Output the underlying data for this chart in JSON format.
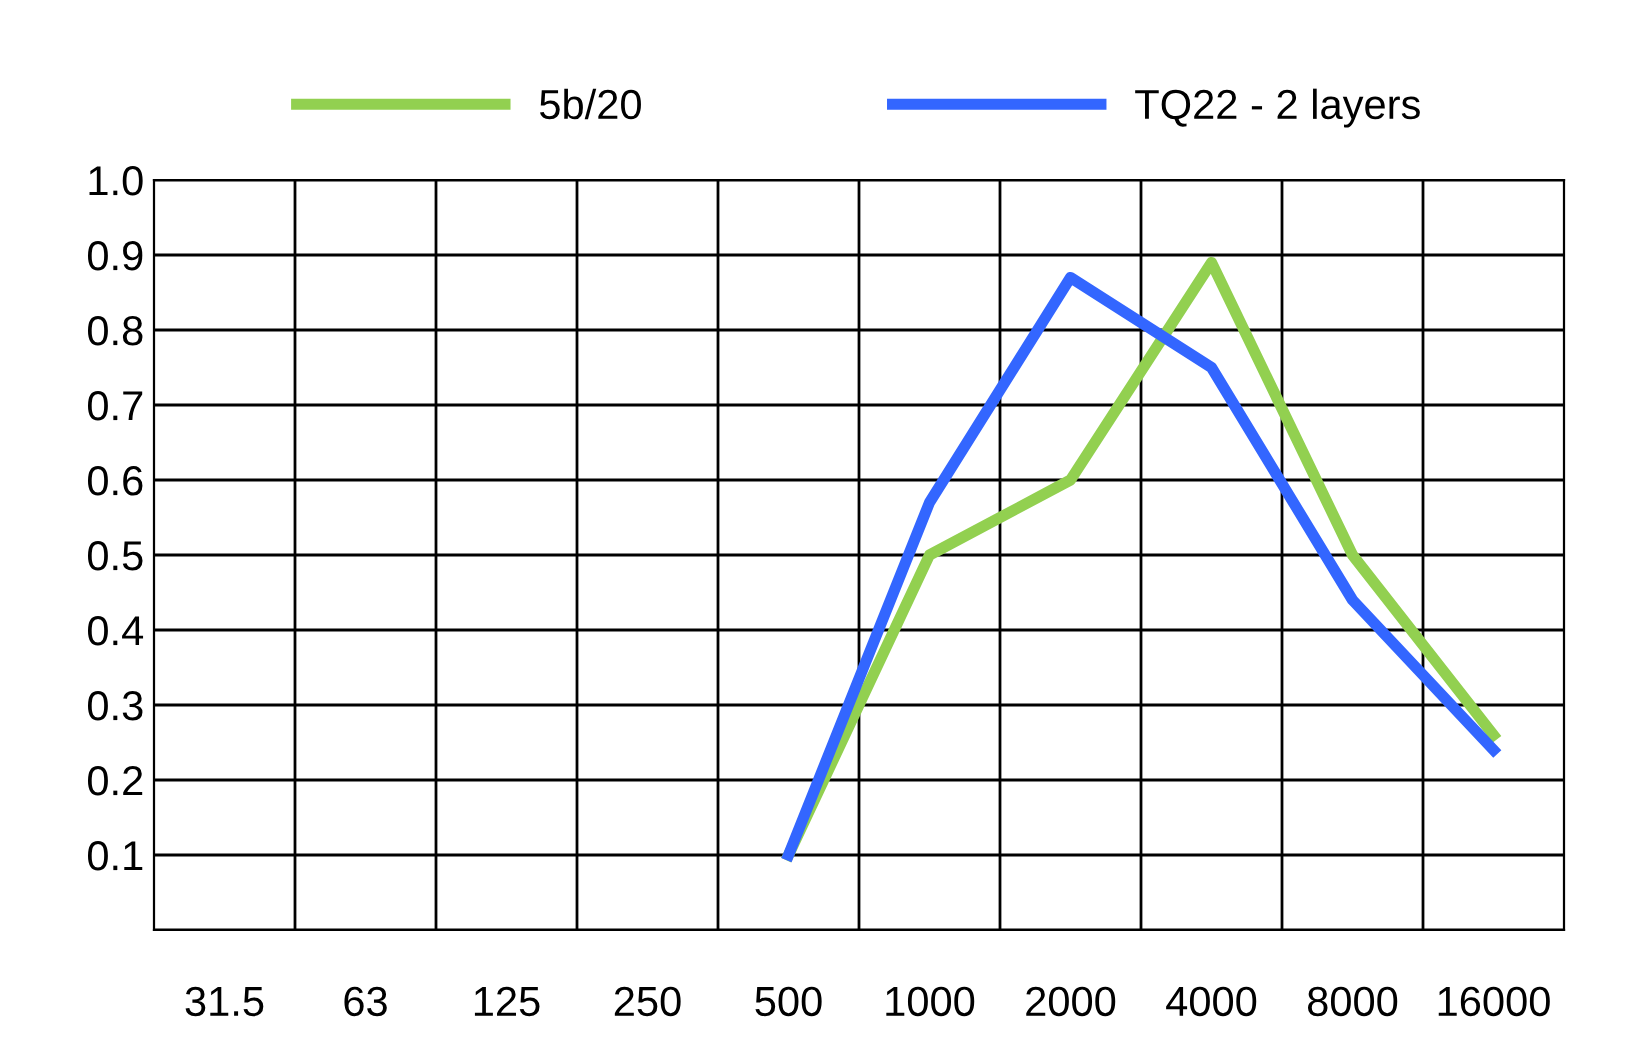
{
  "chart_data": {
    "type": "line",
    "categories": [
      "31.5",
      "63",
      "125",
      "250",
      "500",
      "1000",
      "2000",
      "4000",
      "8000",
      "16000"
    ],
    "series": [
      {
        "name": "5b/20",
        "color": "#92d050",
        "values": [
          null,
          null,
          null,
          null,
          0.1,
          0.5,
          0.6,
          0.89,
          0.5,
          0.26
        ]
      },
      {
        "name": "TQ22 - 2 layers",
        "color": "#3366ff",
        "values": [
          null,
          null,
          null,
          null,
          0.1,
          0.57,
          0.87,
          0.75,
          0.44,
          0.24
        ]
      }
    ],
    "ylim": [
      0,
      1
    ],
    "yticks": [
      {
        "value": 0,
        "label": null
      },
      0.1,
      0.2,
      0.3,
      0.4,
      0.5,
      0.6,
      0.7,
      0.8,
      0.9,
      {
        "value": 1,
        "label": "1.0"
      }
    ],
    "grid": true,
    "legend": "top",
    "marker": "none",
    "line_style": "solid"
  }
}
